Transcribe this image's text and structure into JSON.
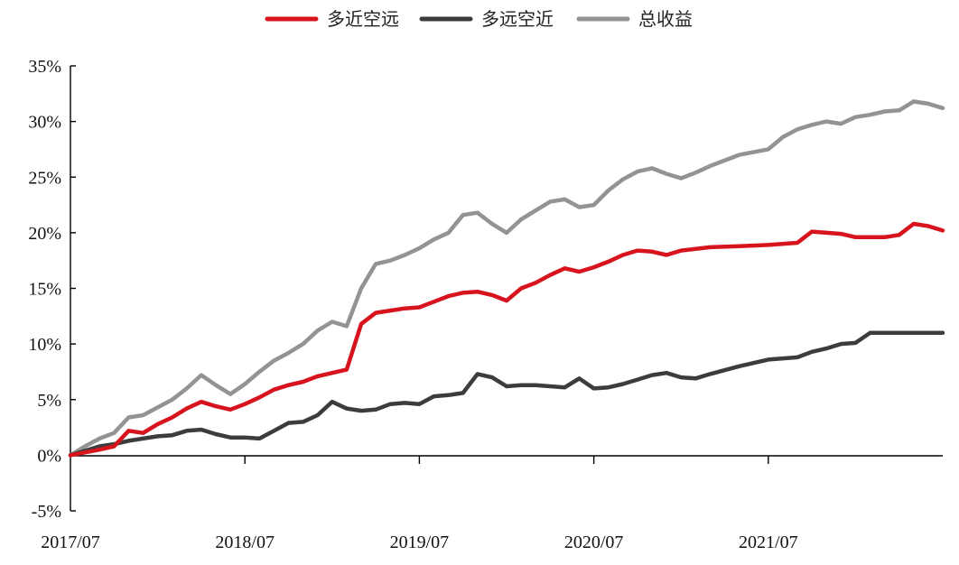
{
  "chart_data": {
    "type": "line",
    "title": "",
    "xlabel": "",
    "ylabel": "",
    "ylim": [
      -5,
      35
    ],
    "y_ticks": [
      "35%",
      "30%",
      "25%",
      "20%",
      "15%",
      "10%",
      "5%",
      "0%",
      "-5%"
    ],
    "y_tick_values": [
      35,
      30,
      25,
      20,
      15,
      10,
      5,
      0,
      -5
    ],
    "x_ticks": [
      "2017/07",
      "2018/07",
      "2019/07",
      "2020/07",
      "2021/07"
    ],
    "x_tick_values": [
      "2017-07",
      "2018-07",
      "2019-07",
      "2020-07",
      "2021-07"
    ],
    "x_range": [
      "2017-07",
      "2022-07"
    ],
    "legend_position": "top-center",
    "grid": false,
    "series": [
      {
        "name": "多近空远",
        "color": "#d7141e",
        "points": [
          [
            "2017-07",
            0.0
          ],
          [
            "2017-09",
            0.5
          ],
          [
            "2017-10",
            0.8
          ],
          [
            "2017-11",
            2.2
          ],
          [
            "2017-12",
            2.0
          ],
          [
            "2018-01",
            2.8
          ],
          [
            "2018-02",
            3.4
          ],
          [
            "2018-03",
            4.2
          ],
          [
            "2018-04",
            4.8
          ],
          [
            "2018-05",
            4.4
          ],
          [
            "2018-06",
            4.1
          ],
          [
            "2018-07",
            4.6
          ],
          [
            "2018-08",
            5.2
          ],
          [
            "2018-09",
            5.9
          ],
          [
            "2018-10",
            6.3
          ],
          [
            "2018-11",
            6.6
          ],
          [
            "2018-12",
            7.1
          ],
          [
            "2019-01",
            7.4
          ],
          [
            "2019-02",
            7.7
          ],
          [
            "2019-03",
            11.8
          ],
          [
            "2019-04",
            12.8
          ],
          [
            "2019-05",
            13.0
          ],
          [
            "2019-06",
            13.2
          ],
          [
            "2019-07",
            13.3
          ],
          [
            "2019-08",
            13.8
          ],
          [
            "2019-09",
            14.3
          ],
          [
            "2019-10",
            14.6
          ],
          [
            "2019-11",
            14.7
          ],
          [
            "2019-12",
            14.4
          ],
          [
            "2020-01",
            13.9
          ],
          [
            "2020-02",
            15.0
          ],
          [
            "2020-03",
            15.5
          ],
          [
            "2020-04",
            16.2
          ],
          [
            "2020-05",
            16.8
          ],
          [
            "2020-06",
            16.5
          ],
          [
            "2020-07",
            16.9
          ],
          [
            "2020-08",
            17.4
          ],
          [
            "2020-09",
            18.0
          ],
          [
            "2020-10",
            18.4
          ],
          [
            "2020-11",
            18.3
          ],
          [
            "2020-12",
            18.0
          ],
          [
            "2021-01",
            18.4
          ],
          [
            "2021-03",
            18.7
          ],
          [
            "2021-05",
            18.8
          ],
          [
            "2021-07",
            18.9
          ],
          [
            "2021-09",
            19.1
          ],
          [
            "2021-10",
            20.1
          ],
          [
            "2021-11",
            20.0
          ],
          [
            "2021-12",
            19.9
          ],
          [
            "2022-01",
            19.6
          ],
          [
            "2022-03",
            19.6
          ],
          [
            "2022-04",
            19.8
          ],
          [
            "2022-05",
            20.8
          ],
          [
            "2022-06",
            20.6
          ],
          [
            "2022-07",
            20.2
          ]
        ]
      },
      {
        "name": "多远空近",
        "color": "#3c3c3c",
        "points": [
          [
            "2017-07",
            0.0
          ],
          [
            "2017-09",
            0.8
          ],
          [
            "2017-10",
            1.0
          ],
          [
            "2017-11",
            1.3
          ],
          [
            "2017-12",
            1.5
          ],
          [
            "2018-01",
            1.7
          ],
          [
            "2018-02",
            1.8
          ],
          [
            "2018-03",
            2.2
          ],
          [
            "2018-04",
            2.3
          ],
          [
            "2018-05",
            1.9
          ],
          [
            "2018-06",
            1.6
          ],
          [
            "2018-07",
            1.6
          ],
          [
            "2018-08",
            1.5
          ],
          [
            "2018-09",
            2.2
          ],
          [
            "2018-10",
            2.9
          ],
          [
            "2018-11",
            3.0
          ],
          [
            "2018-12",
            3.6
          ],
          [
            "2019-01",
            4.8
          ],
          [
            "2019-02",
            4.2
          ],
          [
            "2019-03",
            4.0
          ],
          [
            "2019-04",
            4.1
          ],
          [
            "2019-05",
            4.6
          ],
          [
            "2019-06",
            4.7
          ],
          [
            "2019-07",
            4.6
          ],
          [
            "2019-08",
            5.3
          ],
          [
            "2019-09",
            5.4
          ],
          [
            "2019-10",
            5.6
          ],
          [
            "2019-11",
            7.3
          ],
          [
            "2019-12",
            7.0
          ],
          [
            "2020-01",
            6.2
          ],
          [
            "2020-02",
            6.3
          ],
          [
            "2020-03",
            6.3
          ],
          [
            "2020-04",
            6.2
          ],
          [
            "2020-05",
            6.1
          ],
          [
            "2020-06",
            6.9
          ],
          [
            "2020-07",
            6.0
          ],
          [
            "2020-08",
            6.1
          ],
          [
            "2020-09",
            6.4
          ],
          [
            "2020-10",
            6.8
          ],
          [
            "2020-11",
            7.2
          ],
          [
            "2020-12",
            7.4
          ],
          [
            "2021-01",
            7.0
          ],
          [
            "2021-02",
            6.9
          ],
          [
            "2021-03",
            7.3
          ],
          [
            "2021-05",
            8.0
          ],
          [
            "2021-07",
            8.6
          ],
          [
            "2021-08",
            8.7
          ],
          [
            "2021-09",
            8.8
          ],
          [
            "2021-10",
            9.3
          ],
          [
            "2021-11",
            9.6
          ],
          [
            "2021-12",
            10.0
          ],
          [
            "2022-01",
            10.1
          ],
          [
            "2022-02",
            11.0
          ],
          [
            "2022-04",
            11.0
          ],
          [
            "2022-07",
            11.0
          ]
        ]
      },
      {
        "name": "总收益",
        "color": "#939393",
        "points": [
          [
            "2017-07",
            0.0
          ],
          [
            "2017-08",
            0.8
          ],
          [
            "2017-09",
            1.5
          ],
          [
            "2017-10",
            2.0
          ],
          [
            "2017-11",
            3.4
          ],
          [
            "2017-12",
            3.6
          ],
          [
            "2018-01",
            4.3
          ],
          [
            "2018-02",
            5.0
          ],
          [
            "2018-03",
            6.0
          ],
          [
            "2018-04",
            7.2
          ],
          [
            "2018-05",
            6.3
          ],
          [
            "2018-06",
            5.5
          ],
          [
            "2018-07",
            6.4
          ],
          [
            "2018-08",
            7.5
          ],
          [
            "2018-09",
            8.5
          ],
          [
            "2018-10",
            9.2
          ],
          [
            "2018-11",
            10.0
          ],
          [
            "2018-12",
            11.2
          ],
          [
            "2019-01",
            12.0
          ],
          [
            "2019-02",
            11.6
          ],
          [
            "2019-03",
            15.0
          ],
          [
            "2019-04",
            17.2
          ],
          [
            "2019-05",
            17.5
          ],
          [
            "2019-06",
            18.0
          ],
          [
            "2019-07",
            18.6
          ],
          [
            "2019-08",
            19.4
          ],
          [
            "2019-09",
            20.0
          ],
          [
            "2019-10",
            21.6
          ],
          [
            "2019-11",
            21.8
          ],
          [
            "2019-12",
            20.8
          ],
          [
            "2020-01",
            20.0
          ],
          [
            "2020-02",
            21.2
          ],
          [
            "2020-03",
            22.0
          ],
          [
            "2020-04",
            22.8
          ],
          [
            "2020-05",
            23.0
          ],
          [
            "2020-06",
            22.3
          ],
          [
            "2020-07",
            22.5
          ],
          [
            "2020-08",
            23.8
          ],
          [
            "2020-09",
            24.8
          ],
          [
            "2020-10",
            25.5
          ],
          [
            "2020-11",
            25.8
          ],
          [
            "2020-12",
            25.3
          ],
          [
            "2021-01",
            24.9
          ],
          [
            "2021-02",
            25.4
          ],
          [
            "2021-03",
            26.0
          ],
          [
            "2021-05",
            27.0
          ],
          [
            "2021-07",
            27.5
          ],
          [
            "2021-08",
            28.6
          ],
          [
            "2021-09",
            29.3
          ],
          [
            "2021-10",
            29.7
          ],
          [
            "2021-11",
            30.0
          ],
          [
            "2021-12",
            29.8
          ],
          [
            "2022-01",
            30.4
          ],
          [
            "2022-02",
            30.6
          ],
          [
            "2022-03",
            30.9
          ],
          [
            "2022-04",
            31.0
          ],
          [
            "2022-05",
            31.8
          ],
          [
            "2022-06",
            31.6
          ],
          [
            "2022-07",
            31.2
          ]
        ]
      }
    ]
  }
}
